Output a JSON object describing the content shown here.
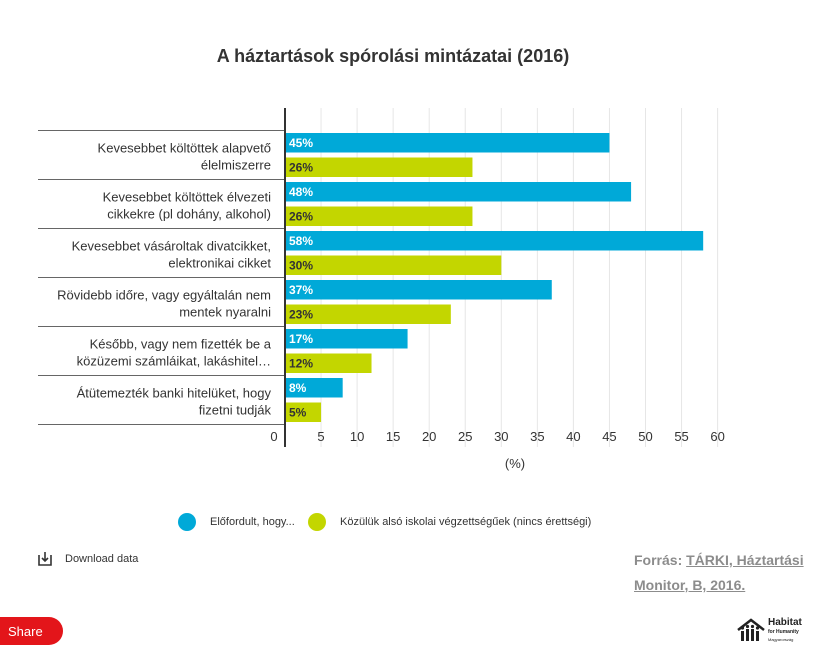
{
  "title": "A háztartások spórolási mintázatai (2016)",
  "chart_data": {
    "type": "bar",
    "orientation": "horizontal",
    "categories": [
      [
        "Kevesebbet költöttek alapvető",
        "élelmiszerre"
      ],
      [
        "Kevesebbet költöttek élvezeti",
        "cikkekre (pl dohány, alkohol)"
      ],
      [
        "Kevesebbet vásároltak divatcikket,",
        "elektronikai cikket"
      ],
      [
        "Rövidebb időre, vagy egyáltalán nem",
        "mentek nyaralni"
      ],
      [
        "Később, vagy nem fizették be a",
        "közüzemi számláikat, lakáshitel…"
      ],
      [
        "Átütemezték banki hitelüket, hogy",
        "fizetni tudják"
      ]
    ],
    "series": [
      {
        "name": "Előfordult, hogy...",
        "color": "#00a9d8",
        "values": [
          45,
          48,
          58,
          37,
          17,
          8
        ]
      },
      {
        "name": "Közülük alsó iskolai végzettségűek (nincs érettségi)",
        "color": "#c3d600",
        "values": [
          26,
          26,
          30,
          23,
          12,
          5
        ]
      }
    ],
    "value_suffix": "%",
    "xlim": [
      0,
      60
    ],
    "xticks": [
      0,
      5,
      10,
      15,
      20,
      25,
      30,
      35,
      40,
      45,
      50,
      55,
      60
    ],
    "xlabel": "(%)",
    "grid": true,
    "legend": "bottom"
  },
  "legend": {
    "items": [
      {
        "label": "Előfordult, hogy...",
        "color": "#00a9d8"
      },
      {
        "label": "Közülük alsó iskolai végzettségűek (nincs érettségi)",
        "color": "#c3d600"
      }
    ]
  },
  "download": {
    "label": "Download data",
    "icon": "download-icon"
  },
  "source": {
    "prefix": "Forrás:",
    "link": "TÁRKI, Háztartási Monitor, B, 2016."
  },
  "share": {
    "label": "Share"
  },
  "logo": {
    "name": "Habitat",
    "sub": "for Humanity",
    "region": "Magyarország"
  }
}
